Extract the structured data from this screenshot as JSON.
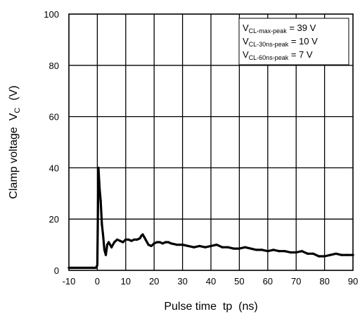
{
  "chart_data": {
    "type": "line",
    "title": "",
    "xlabel": "Pulse time  tp  (ns)",
    "ylabel": "Clamp voltage  V",
    "ylabel_sub": "C",
    "ylabel_unit": "(V)",
    "xlim": [
      -10,
      90
    ],
    "ylim": [
      0,
      100
    ],
    "xticks": [
      -10,
      0,
      10,
      20,
      30,
      40,
      50,
      60,
      70,
      80,
      90
    ],
    "yticks": [
      0,
      20,
      40,
      60,
      80,
      100
    ],
    "grid": true,
    "legend_position": "top-right",
    "annotations": [
      {
        "prefix": "V",
        "sub": "CL-max-peak",
        "value": " = 39 V"
      },
      {
        "prefix": "V",
        "sub": "CL-30ns-peak",
        "value": " = 10 V"
      },
      {
        "prefix": "V",
        "sub": "CL-60ns-peak",
        "value": " = 7 V"
      }
    ],
    "series": [
      {
        "color": "#000000",
        "x": [
          -10,
          -6,
          -2,
          -0.5,
          0,
          0.4,
          0.8,
          1.2,
          1.6,
          2,
          2.5,
          3,
          3.5,
          4,
          5,
          6,
          7,
          8,
          9,
          10,
          11,
          12,
          13,
          14,
          15,
          15.5,
          16,
          16.5,
          17,
          18,
          19,
          20,
          21,
          22,
          23,
          24,
          25,
          26,
          28,
          30,
          32,
          34,
          36,
          38,
          40,
          42,
          44,
          46,
          48,
          50,
          52,
          54,
          56,
          58,
          60,
          62,
          64,
          66,
          68,
          70,
          72,
          74,
          76,
          78,
          80,
          82,
          84,
          86,
          88,
          90
        ],
        "y": [
          1,
          1,
          1,
          1,
          2,
          40,
          32,
          27,
          18,
          14,
          8,
          6,
          10,
          11,
          9,
          11,
          12,
          11.5,
          11,
          12,
          12,
          11.5,
          12,
          12,
          12.5,
          13.5,
          14,
          13,
          12,
          10,
          9.5,
          10.5,
          11,
          11,
          10.5,
          11,
          11,
          10.5,
          10,
          10,
          9.5,
          9,
          9.5,
          9,
          9.5,
          10,
          9,
          9,
          8.5,
          8.5,
          9,
          8.5,
          8,
          8,
          7.5,
          8,
          7.5,
          7.5,
          7,
          7,
          7.5,
          6.5,
          6.5,
          5.5,
          5.5,
          6,
          6.5,
          6,
          6,
          6
        ]
      }
    ]
  }
}
